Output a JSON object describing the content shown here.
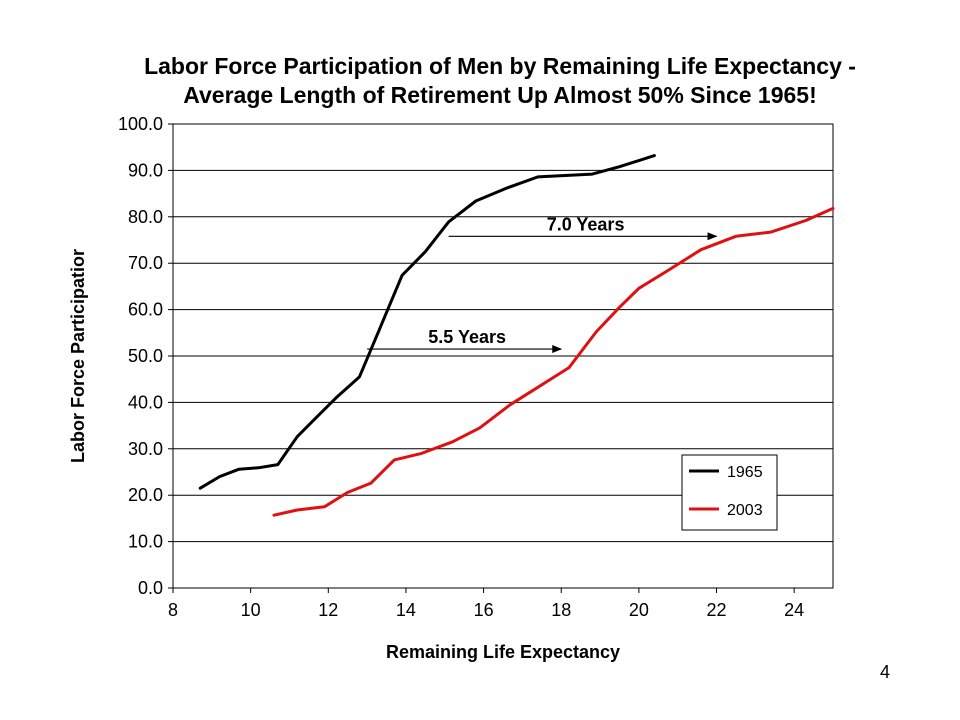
{
  "slide_number": "4",
  "chart_data": {
    "type": "line",
    "title": "Labor Force Participation of Men by Remaining Life Expectancy -",
    "subtitle": "Average Length of Retirement Up Almost 50% Since 1965!",
    "xlabel": "Remaining Life Expectancy",
    "ylabel": "Labor Force Participatior",
    "xlim": [
      8,
      25
    ],
    "ylim": [
      0,
      100
    ],
    "x_ticks": [
      8,
      10,
      12,
      14,
      16,
      18,
      20,
      22,
      24
    ],
    "y_ticks": [
      "0.0",
      "10.0",
      "20.0",
      "30.0",
      "40.0",
      "50.0",
      "60.0",
      "70.0",
      "80.0",
      "90.0",
      "100.0"
    ],
    "grid": "horizontal",
    "series": [
      {
        "name": "1965",
        "color": "#000000",
        "points": [
          [
            8.7,
            21.5
          ],
          [
            9.2,
            24.0
          ],
          [
            9.7,
            25.6
          ],
          [
            10.2,
            25.9
          ],
          [
            10.7,
            26.6
          ],
          [
            11.2,
            32.6
          ],
          [
            11.7,
            36.8
          ],
          [
            12.2,
            41.0
          ],
          [
            12.8,
            45.5
          ],
          [
            13.3,
            55.4
          ],
          [
            13.9,
            67.4
          ],
          [
            14.5,
            72.5
          ],
          [
            15.1,
            78.9
          ],
          [
            15.8,
            83.4
          ],
          [
            16.6,
            86.2
          ],
          [
            17.4,
            88.6
          ],
          [
            18.1,
            88.9
          ],
          [
            18.8,
            89.2
          ],
          [
            19.5,
            90.8
          ],
          [
            20.4,
            93.2
          ]
        ]
      },
      {
        "name": "2003",
        "color": "#e01010",
        "points": [
          [
            10.6,
            15.7
          ],
          [
            11.2,
            16.8
          ],
          [
            11.9,
            17.5
          ],
          [
            12.5,
            20.6
          ],
          [
            13.1,
            22.6
          ],
          [
            13.7,
            27.6
          ],
          [
            14.4,
            29.0
          ],
          [
            15.2,
            31.5
          ],
          [
            15.9,
            34.5
          ],
          [
            16.7,
            39.6
          ],
          [
            17.5,
            43.8
          ],
          [
            18.2,
            47.5
          ],
          [
            18.9,
            55.2
          ],
          [
            19.5,
            60.5
          ],
          [
            20.0,
            64.6
          ],
          [
            20.7,
            68.2
          ],
          [
            21.6,
            72.9
          ],
          [
            22.5,
            75.8
          ],
          [
            23.4,
            76.7
          ],
          [
            24.3,
            79.2
          ],
          [
            25.0,
            81.8
          ]
        ]
      }
    ],
    "annotations": [
      {
        "text": "7.0 Years",
        "x_from": 15.1,
        "x_to": 22.0,
        "y": 75.8
      },
      {
        "text": "5.5 Years",
        "x_from": 13.0,
        "x_to": 18.0,
        "y": 51.5
      }
    ],
    "legend": {
      "placement": "bottom-right",
      "entries": [
        {
          "name": "1965",
          "color": "#000000"
        },
        {
          "name": "2003",
          "color": "#e01010"
        }
      ]
    }
  }
}
